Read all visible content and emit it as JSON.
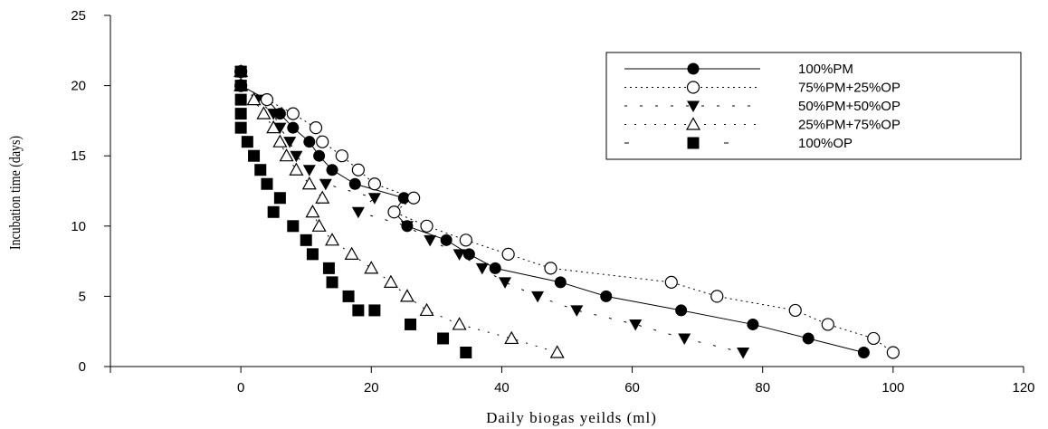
{
  "chart_data": {
    "type": "line",
    "xlabel": "Daily biogas yeilds (ml)",
    "ylabel": "Incubation time (days)",
    "xlim": [
      -20,
      120
    ],
    "ylim": [
      0,
      25
    ],
    "xticks": [
      0,
      20,
      40,
      60,
      80,
      100,
      120
    ],
    "yticks": [
      0,
      5,
      10,
      15,
      20,
      25
    ],
    "legend_position": "top-right",
    "series": [
      {
        "name": "100%PM",
        "marker": "filled-circle",
        "line": "solid",
        "points": [
          [
            0,
            21
          ],
          [
            0,
            20
          ],
          [
            4,
            19
          ],
          [
            6,
            18
          ],
          [
            8,
            17
          ],
          [
            10.5,
            16
          ],
          [
            12,
            15
          ],
          [
            14,
            14
          ],
          [
            17.5,
            13
          ],
          [
            25,
            12
          ],
          [
            23.5,
            11
          ],
          [
            25.5,
            10
          ],
          [
            31.5,
            9
          ],
          [
            35,
            8
          ],
          [
            39,
            7
          ],
          [
            49,
            6
          ],
          [
            56,
            5
          ],
          [
            67.5,
            4
          ],
          [
            78.5,
            3
          ],
          [
            87,
            2
          ],
          [
            95.5,
            1
          ]
        ]
      },
      {
        "name": "75%PM+25%OP",
        "marker": "open-circle",
        "line": "dotted",
        "points": [
          [
            0,
            21
          ],
          [
            0,
            20
          ],
          [
            4,
            19
          ],
          [
            8,
            18
          ],
          [
            11.5,
            17
          ],
          [
            12.5,
            16
          ],
          [
            15.5,
            15
          ],
          [
            18,
            14
          ],
          [
            20.5,
            13
          ],
          [
            26.5,
            12
          ],
          [
            23.5,
            11
          ],
          [
            28.5,
            10
          ],
          [
            34.5,
            9
          ],
          [
            41,
            8
          ],
          [
            47.5,
            7
          ],
          [
            66,
            6
          ],
          [
            73,
            5
          ],
          [
            85,
            4
          ],
          [
            90,
            3
          ],
          [
            97,
            2
          ],
          [
            100,
            1
          ]
        ]
      },
      {
        "name": "50%PM+50%OP",
        "marker": "filled-triangle-down",
        "line": "dashed",
        "points": [
          [
            0,
            21
          ],
          [
            0,
            20
          ],
          [
            2.5,
            19
          ],
          [
            5,
            18
          ],
          [
            6,
            17
          ],
          [
            7.5,
            16
          ],
          [
            8.5,
            15
          ],
          [
            10.5,
            14
          ],
          [
            13,
            13
          ],
          [
            20.5,
            12
          ],
          [
            18,
            11
          ],
          [
            25.5,
            10
          ],
          [
            29,
            9
          ],
          [
            33.5,
            8
          ],
          [
            37,
            7
          ],
          [
            40.5,
            6
          ],
          [
            45.5,
            5
          ],
          [
            51.5,
            4
          ],
          [
            60.5,
            3
          ],
          [
            68,
            2
          ],
          [
            77,
            1
          ]
        ]
      },
      {
        "name": "25%PM+75%OP",
        "marker": "open-triangle-up",
        "line": "dotted-sparse",
        "points": [
          [
            0,
            21
          ],
          [
            0,
            20
          ],
          [
            2,
            19
          ],
          [
            3.5,
            18
          ],
          [
            5,
            17
          ],
          [
            6,
            16
          ],
          [
            7,
            15
          ],
          [
            8.5,
            14
          ],
          [
            10.5,
            13
          ],
          [
            12.5,
            12
          ],
          [
            11,
            11
          ],
          [
            12,
            10
          ],
          [
            14,
            9
          ],
          [
            17,
            8
          ],
          [
            20,
            7
          ],
          [
            23,
            6
          ],
          [
            25.5,
            5
          ],
          [
            28.5,
            4
          ],
          [
            33.5,
            3
          ],
          [
            41.5,
            2
          ],
          [
            48.5,
            1
          ]
        ]
      },
      {
        "name": "100%OP",
        "marker": "filled-square",
        "line": "none",
        "points": [
          [
            0,
            21
          ],
          [
            0,
            20
          ],
          [
            0,
            19
          ],
          [
            0,
            18
          ],
          [
            0,
            17
          ],
          [
            1,
            16
          ],
          [
            2,
            15
          ],
          [
            3,
            14
          ],
          [
            4,
            13
          ],
          [
            6,
            12
          ],
          [
            5,
            11
          ],
          [
            8,
            10
          ],
          [
            10,
            9
          ],
          [
            11,
            8
          ],
          [
            13.5,
            7
          ],
          [
            14,
            6
          ],
          [
            16.5,
            5
          ],
          [
            18,
            4
          ],
          [
            20.5,
            4
          ],
          [
            26,
            3
          ],
          [
            31,
            2
          ],
          [
            34.5,
            1
          ]
        ]
      }
    ]
  }
}
